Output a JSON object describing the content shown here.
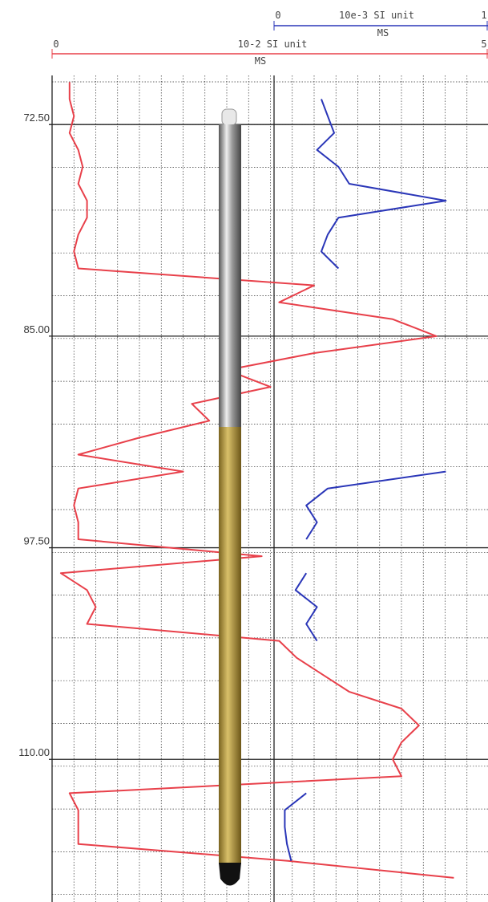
{
  "chart_data": {
    "type": "line",
    "depth": [
      70,
      71,
      72,
      73,
      74,
      75,
      76,
      77,
      78,
      79,
      80,
      81,
      82,
      83,
      84,
      85,
      86,
      87,
      88,
      89,
      90,
      91,
      92,
      93,
      94,
      95,
      96,
      97,
      98,
      99,
      100,
      101,
      102,
      103,
      104,
      105,
      106,
      107,
      108,
      109,
      110,
      111,
      112,
      113,
      114,
      115,
      116,
      117
    ],
    "ylim": [
      69.6,
      118
    ],
    "yticks": [
      {
        "value": 72.5,
        "label": "72.50"
      },
      {
        "value": 85,
        "label": "85.00"
      },
      {
        "value": 97.5,
        "label": "97.50"
      },
      {
        "value": 110,
        "label": "110.00"
      }
    ],
    "grid": true,
    "series": [
      {
        "color": "#e8404a",
        "axis_label": "10-2 SI unit",
        "axis_title": "MS",
        "xlim": [
          0,
          5
        ],
        "xticks": [
          0,
          5
        ],
        "values": [
          0.2,
          0.2,
          0.25,
          0.2,
          0.3,
          0.35,
          0.3,
          0.4,
          0.4,
          0.3,
          0.25,
          0.3,
          3.0,
          2.6,
          3.9,
          4.4,
          3.0,
          2.0,
          2.5,
          1.6,
          1.8,
          1.0,
          0.3,
          1.5,
          0.3,
          0.25,
          0.3,
          0.3,
          2.4,
          0.1,
          0.4,
          0.5,
          0.4,
          2.6,
          2.8,
          3.1,
          3.4,
          4.0,
          4.2,
          4.0,
          3.9,
          4.0,
          0.2,
          0.3,
          0.3,
          0.3,
          2.7,
          4.6
        ]
      },
      {
        "color": "#2a36b8",
        "axis_label": "10e-3 SI unit",
        "axis_title": "MS",
        "xlim": [
          0,
          1
        ],
        "xticks": [
          0,
          1
        ],
        "values": [
          null,
          0.22,
          0.25,
          0.28,
          0.2,
          0.3,
          0.35,
          0.8,
          0.3,
          0.25,
          0.22,
          0.3,
          null,
          null,
          null,
          null,
          null,
          null,
          null,
          null,
          null,
          null,
          null,
          0.8,
          0.25,
          0.15,
          0.2,
          0.15,
          null,
          0.15,
          0.1,
          0.2,
          0.15,
          0.2,
          null,
          null,
          null,
          null,
          null,
          null,
          null,
          null,
          0.15,
          0.05,
          0.05,
          0.06,
          0.08,
          null
        ]
      }
    ]
  }
}
